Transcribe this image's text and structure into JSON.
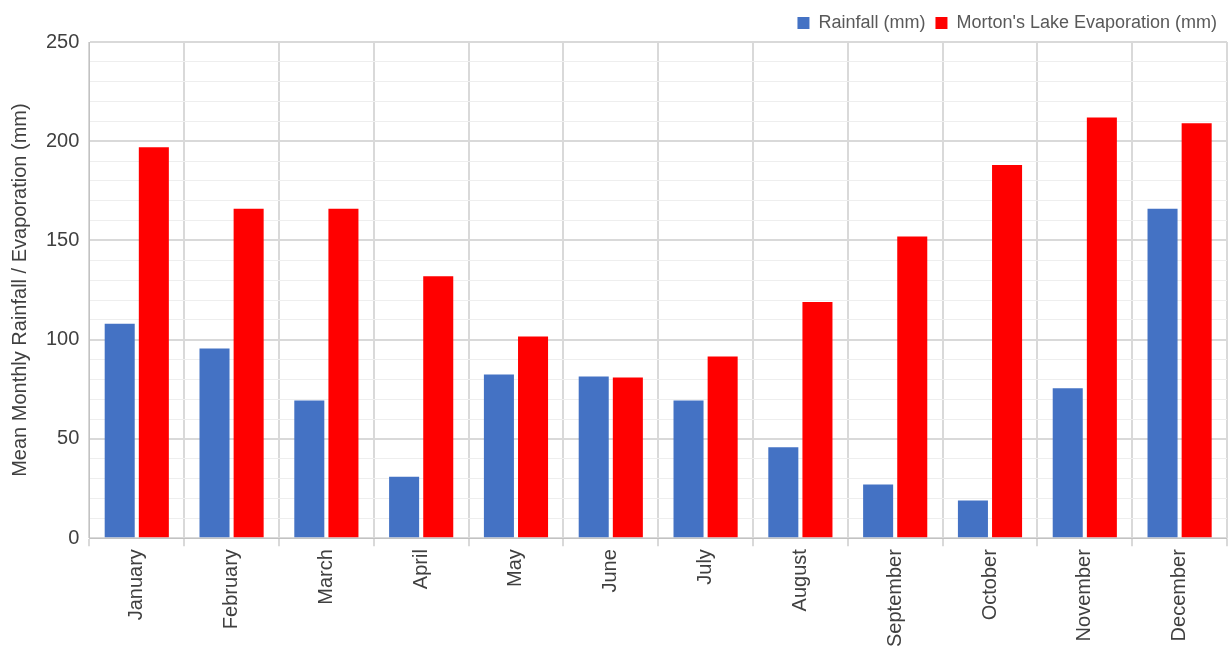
{
  "chart_data": {
    "type": "bar",
    "ylabel": "Mean Monthly Rainfall / Evaporation (mm)",
    "categories": [
      "January",
      "February",
      "March",
      "April",
      "May",
      "June",
      "July",
      "August",
      "September",
      "October",
      "November",
      "December"
    ],
    "series": [
      {
        "name": "Rainfall (mm)",
        "color": "#4472c4",
        "values": [
          108,
          95.6,
          69.4,
          31,
          82.5,
          81.5,
          69.4,
          45.8,
          27,
          19,
          75.5,
          166
        ]
      },
      {
        "name": "Morton's Lake Evaporation (mm)",
        "color": "#ff0000",
        "values": [
          197,
          166,
          166,
          132,
          101.6,
          81,
          91.5,
          119,
          152,
          188,
          212,
          209
        ]
      }
    ],
    "ylim": [
      0,
      250
    ],
    "yticks": [
      0,
      {
        "value": 10,
        "label": null
      },
      {
        "value": 20,
        "label": null
      },
      {
        "value": 30,
        "label": null
      },
      {
        "value": 40,
        "label": null
      },
      50,
      {
        "value": 60,
        "label": null
      },
      {
        "value": 70,
        "label": null
      },
      {
        "value": 80,
        "label": null
      },
      {
        "value": 90,
        "label": null
      },
      100,
      {
        "value": 110,
        "label": null
      },
      {
        "value": 120,
        "label": null
      },
      {
        "value": 130,
        "label": null
      },
      {
        "value": 140,
        "label": null
      },
      150,
      {
        "value": 160,
        "label": null
      },
      {
        "value": 170,
        "label": null
      },
      {
        "value": 180,
        "label": null
      },
      {
        "value": 190,
        "label": null
      },
      200,
      {
        "value": 210,
        "label": null
      },
      {
        "value": 220,
        "label": null
      },
      {
        "value": 230,
        "label": null
      },
      {
        "value": 240,
        "label": null
      },
      250
    ],
    "grid": true,
    "legend": "top right"
  }
}
